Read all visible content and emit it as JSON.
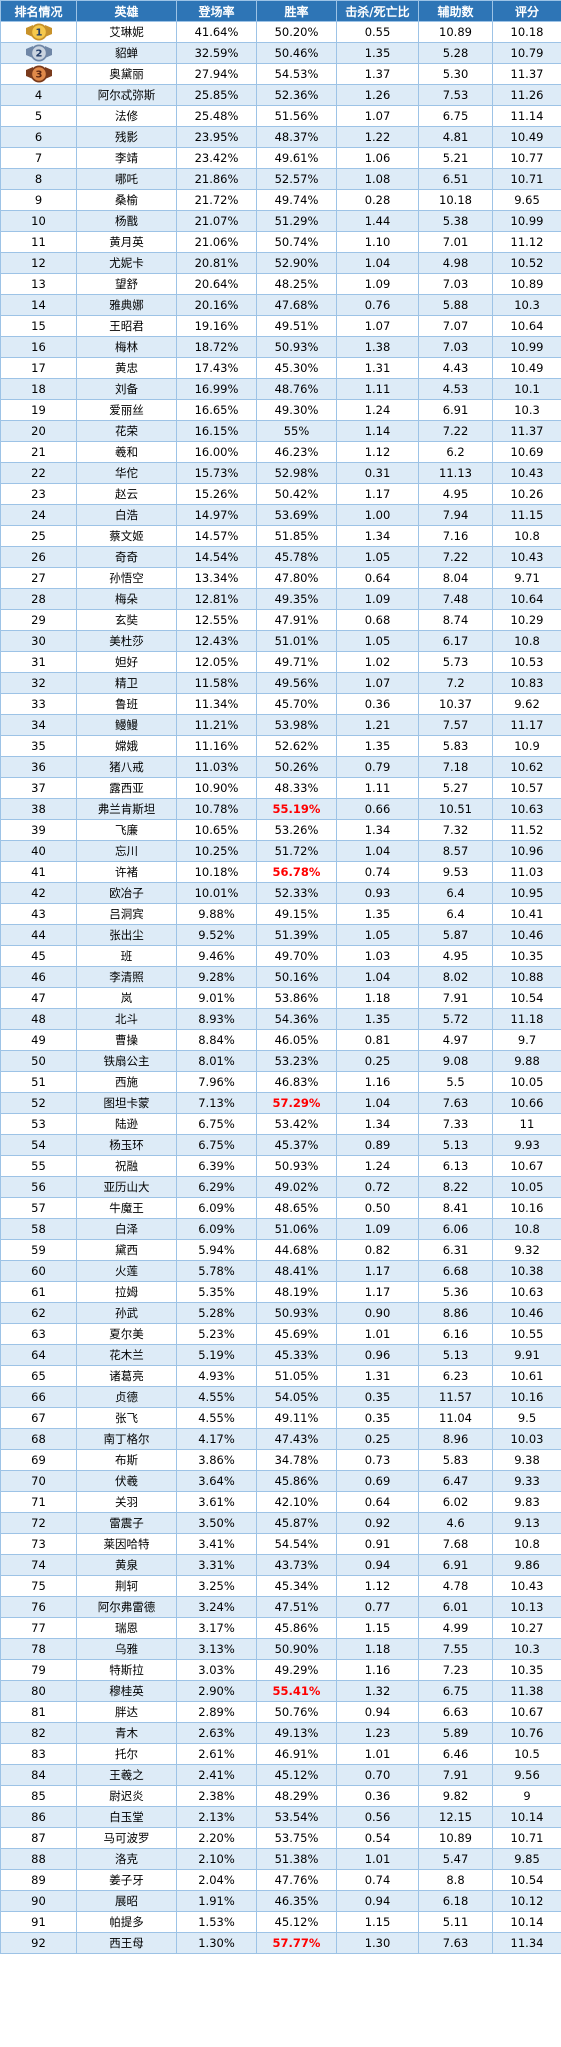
{
  "headers": [
    "排名情况",
    "英雄",
    "登场率",
    "胜率",
    "击杀/死亡比",
    "辅助数",
    "评分"
  ],
  "highlight_color": "#ff0000",
  "header_color": "#2e75b6",
  "stripe_color": "#ddebf7",
  "medal_icons": [
    "gold-medal-rank-1-icon",
    "silver-medal-rank-2-icon",
    "bronze-medal-rank-3-icon"
  ],
  "rows": [
    {
      "rank": "1",
      "hero": "艾琳妮",
      "appear": "41.64%",
      "win": "50.20%",
      "kd": "0.55",
      "assist": "10.89",
      "score": "10.18"
    },
    {
      "rank": "2",
      "hero": "貂蝉",
      "appear": "32.59%",
      "win": "50.46%",
      "kd": "1.35",
      "assist": "5.28",
      "score": "10.79"
    },
    {
      "rank": "3",
      "hero": "奥黛丽",
      "appear": "27.94%",
      "win": "54.53%",
      "kd": "1.37",
      "assist": "5.30",
      "score": "11.37"
    },
    {
      "rank": "4",
      "hero": "阿尔忒弥斯",
      "appear": "25.85%",
      "win": "52.36%",
      "kd": "1.26",
      "assist": "7.53",
      "score": "11.26"
    },
    {
      "rank": "5",
      "hero": "法修",
      "appear": "25.48%",
      "win": "51.56%",
      "kd": "1.07",
      "assist": "6.75",
      "score": "11.14"
    },
    {
      "rank": "6",
      "hero": "残影",
      "appear": "23.95%",
      "win": "48.37%",
      "kd": "1.22",
      "assist": "4.81",
      "score": "10.49"
    },
    {
      "rank": "7",
      "hero": "李靖",
      "appear": "23.42%",
      "win": "49.61%",
      "kd": "1.06",
      "assist": "5.21",
      "score": "10.77"
    },
    {
      "rank": "8",
      "hero": "哪吒",
      "appear": "21.86%",
      "win": "52.57%",
      "kd": "1.08",
      "assist": "6.51",
      "score": "10.71"
    },
    {
      "rank": "9",
      "hero": "桑榆",
      "appear": "21.72%",
      "win": "49.74%",
      "kd": "0.28",
      "assist": "10.18",
      "score": "9.65"
    },
    {
      "rank": "10",
      "hero": "杨戬",
      "appear": "21.07%",
      "win": "51.29%",
      "kd": "1.44",
      "assist": "5.38",
      "score": "10.99"
    },
    {
      "rank": "11",
      "hero": "黄月英",
      "appear": "21.06%",
      "win": "50.74%",
      "kd": "1.10",
      "assist": "7.01",
      "score": "11.12"
    },
    {
      "rank": "12",
      "hero": "尤妮卡",
      "appear": "20.81%",
      "win": "52.90%",
      "kd": "1.04",
      "assist": "4.98",
      "score": "10.52"
    },
    {
      "rank": "13",
      "hero": "望舒",
      "appear": "20.64%",
      "win": "48.25%",
      "kd": "1.09",
      "assist": "7.03",
      "score": "10.89"
    },
    {
      "rank": "14",
      "hero": "雅典娜",
      "appear": "20.16%",
      "win": "47.68%",
      "kd": "0.76",
      "assist": "5.88",
      "score": "10.3"
    },
    {
      "rank": "15",
      "hero": "王昭君",
      "appear": "19.16%",
      "win": "49.51%",
      "kd": "1.07",
      "assist": "7.07",
      "score": "10.64"
    },
    {
      "rank": "16",
      "hero": "梅林",
      "appear": "18.72%",
      "win": "50.93%",
      "kd": "1.38",
      "assist": "7.03",
      "score": "10.99"
    },
    {
      "rank": "17",
      "hero": "黄忠",
      "appear": "17.43%",
      "win": "45.30%",
      "kd": "1.31",
      "assist": "4.43",
      "score": "10.49"
    },
    {
      "rank": "18",
      "hero": "刘备",
      "appear": "16.99%",
      "win": "48.76%",
      "kd": "1.11",
      "assist": "4.53",
      "score": "10.1"
    },
    {
      "rank": "19",
      "hero": "爱丽丝",
      "appear": "16.65%",
      "win": "49.30%",
      "kd": "1.24",
      "assist": "6.91",
      "score": "10.3"
    },
    {
      "rank": "20",
      "hero": "花荣",
      "appear": "16.15%",
      "win": "55%",
      "kd": "1.14",
      "assist": "7.22",
      "score": "11.37"
    },
    {
      "rank": "21",
      "hero": "羲和",
      "appear": "16.00%",
      "win": "46.23%",
      "kd": "1.12",
      "assist": "6.2",
      "score": "10.69"
    },
    {
      "rank": "22",
      "hero": "华佗",
      "appear": "15.73%",
      "win": "52.98%",
      "kd": "0.31",
      "assist": "11.13",
      "score": "10.43"
    },
    {
      "rank": "23",
      "hero": "赵云",
      "appear": "15.26%",
      "win": "50.42%",
      "kd": "1.17",
      "assist": "4.95",
      "score": "10.26"
    },
    {
      "rank": "24",
      "hero": "白浩",
      "appear": "14.97%",
      "win": "53.69%",
      "kd": "1.00",
      "assist": "7.94",
      "score": "11.15"
    },
    {
      "rank": "25",
      "hero": "蔡文姬",
      "appear": "14.57%",
      "win": "51.85%",
      "kd": "1.34",
      "assist": "7.16",
      "score": "10.8"
    },
    {
      "rank": "26",
      "hero": "奇奇",
      "appear": "14.54%",
      "win": "45.78%",
      "kd": "1.05",
      "assist": "7.22",
      "score": "10.43"
    },
    {
      "rank": "27",
      "hero": "孙悟空",
      "appear": "13.34%",
      "win": "47.80%",
      "kd": "0.64",
      "assist": "8.04",
      "score": "9.71"
    },
    {
      "rank": "28",
      "hero": "梅朵",
      "appear": "12.81%",
      "win": "49.35%",
      "kd": "1.09",
      "assist": "7.48",
      "score": "10.64"
    },
    {
      "rank": "29",
      "hero": "玄奘",
      "appear": "12.55%",
      "win": "47.91%",
      "kd": "0.68",
      "assist": "8.74",
      "score": "10.29"
    },
    {
      "rank": "30",
      "hero": "美杜莎",
      "appear": "12.43%",
      "win": "51.01%",
      "kd": "1.05",
      "assist": "6.17",
      "score": "10.8"
    },
    {
      "rank": "31",
      "hero": "妲好",
      "appear": "12.05%",
      "win": "49.71%",
      "kd": "1.02",
      "assist": "5.73",
      "score": "10.53"
    },
    {
      "rank": "32",
      "hero": "精卫",
      "appear": "11.58%",
      "win": "49.56%",
      "kd": "1.07",
      "assist": "7.2",
      "score": "10.83"
    },
    {
      "rank": "33",
      "hero": "鲁班",
      "appear": "11.34%",
      "win": "45.70%",
      "kd": "0.36",
      "assist": "10.37",
      "score": "9.62"
    },
    {
      "rank": "34",
      "hero": "鳗鳗",
      "appear": "11.21%",
      "win": "53.98%",
      "kd": "1.21",
      "assist": "7.57",
      "score": "11.17"
    },
    {
      "rank": "35",
      "hero": "嫦娥",
      "appear": "11.16%",
      "win": "52.62%",
      "kd": "1.35",
      "assist": "5.83",
      "score": "10.9"
    },
    {
      "rank": "36",
      "hero": "猪八戒",
      "appear": "11.03%",
      "win": "50.26%",
      "kd": "0.79",
      "assist": "7.18",
      "score": "10.62"
    },
    {
      "rank": "37",
      "hero": "露西亚",
      "appear": "10.90%",
      "win": "48.33%",
      "kd": "1.11",
      "assist": "5.27",
      "score": "10.57"
    },
    {
      "rank": "38",
      "hero": "弗兰肯斯坦",
      "appear": "10.78%",
      "win": "55.19%",
      "win_hl": true,
      "kd": "0.66",
      "assist": "10.51",
      "score": "10.63"
    },
    {
      "rank": "39",
      "hero": "飞廉",
      "appear": "10.65%",
      "win": "53.26%",
      "kd": "1.34",
      "assist": "7.32",
      "score": "11.52"
    },
    {
      "rank": "40",
      "hero": "忘川",
      "appear": "10.25%",
      "win": "51.72%",
      "kd": "1.04",
      "assist": "8.57",
      "score": "10.96"
    },
    {
      "rank": "41",
      "hero": "许褚",
      "appear": "10.18%",
      "win": "56.78%",
      "win_hl": true,
      "kd": "0.74",
      "assist": "9.53",
      "score": "11.03"
    },
    {
      "rank": "42",
      "hero": "欧冶子",
      "appear": "10.01%",
      "win": "52.33%",
      "kd": "0.93",
      "assist": "6.4",
      "score": "10.95"
    },
    {
      "rank": "43",
      "hero": "吕洞宾",
      "appear": "9.88%",
      "win": "49.15%",
      "kd": "1.35",
      "assist": "6.4",
      "score": "10.41"
    },
    {
      "rank": "44",
      "hero": "张出尘",
      "appear": "9.52%",
      "win": "51.39%",
      "kd": "1.05",
      "assist": "5.87",
      "score": "10.46"
    },
    {
      "rank": "45",
      "hero": "班",
      "appear": "9.46%",
      "win": "49.70%",
      "kd": "1.03",
      "assist": "4.95",
      "score": "10.35"
    },
    {
      "rank": "46",
      "hero": "李清照",
      "appear": "9.28%",
      "win": "50.16%",
      "kd": "1.04",
      "assist": "8.02",
      "score": "10.88"
    },
    {
      "rank": "47",
      "hero": "岚",
      "appear": "9.01%",
      "win": "53.86%",
      "kd": "1.18",
      "assist": "7.91",
      "score": "10.54"
    },
    {
      "rank": "48",
      "hero": "北斗",
      "appear": "8.93%",
      "win": "54.36%",
      "kd": "1.35",
      "assist": "5.72",
      "score": "11.18"
    },
    {
      "rank": "49",
      "hero": "曹操",
      "appear": "8.84%",
      "win": "46.05%",
      "kd": "0.81",
      "assist": "4.97",
      "score": "9.7"
    },
    {
      "rank": "50",
      "hero": "铁扇公主",
      "appear": "8.01%",
      "win": "53.23%",
      "kd": "0.25",
      "assist": "9.08",
      "score": "9.88"
    },
    {
      "rank": "51",
      "hero": "西施",
      "appear": "7.96%",
      "win": "46.83%",
      "kd": "1.16",
      "assist": "5.5",
      "score": "10.05"
    },
    {
      "rank": "52",
      "hero": "图坦卡蒙",
      "appear": "7.13%",
      "win": "57.29%",
      "win_hl": true,
      "kd": "1.04",
      "assist": "7.63",
      "score": "10.66"
    },
    {
      "rank": "53",
      "hero": "陆逊",
      "appear": "6.75%",
      "win": "53.42%",
      "kd": "1.34",
      "assist": "7.33",
      "score": "11"
    },
    {
      "rank": "54",
      "hero": "杨玉环",
      "appear": "6.75%",
      "win": "45.37%",
      "kd": "0.89",
      "assist": "5.13",
      "score": "9.93"
    },
    {
      "rank": "55",
      "hero": "祝融",
      "appear": "6.39%",
      "win": "50.93%",
      "kd": "1.24",
      "assist": "6.13",
      "score": "10.67"
    },
    {
      "rank": "56",
      "hero": "亚历山大",
      "appear": "6.29%",
      "win": "49.02%",
      "kd": "0.72",
      "assist": "8.22",
      "score": "10.05"
    },
    {
      "rank": "57",
      "hero": "牛魔王",
      "appear": "6.09%",
      "win": "48.65%",
      "kd": "0.50",
      "assist": "8.41",
      "score": "10.16"
    },
    {
      "rank": "58",
      "hero": "白泽",
      "appear": "6.09%",
      "win": "51.06%",
      "kd": "1.09",
      "assist": "6.06",
      "score": "10.8"
    },
    {
      "rank": "59",
      "hero": "黛西",
      "appear": "5.94%",
      "win": "44.68%",
      "kd": "0.82",
      "assist": "6.31",
      "score": "9.32"
    },
    {
      "rank": "60",
      "hero": "火莲",
      "appear": "5.78%",
      "win": "48.41%",
      "kd": "1.17",
      "assist": "6.68",
      "score": "10.38"
    },
    {
      "rank": "61",
      "hero": "拉姆",
      "appear": "5.35%",
      "win": "48.19%",
      "kd": "1.17",
      "assist": "5.36",
      "score": "10.63"
    },
    {
      "rank": "62",
      "hero": "孙武",
      "appear": "5.28%",
      "win": "50.93%",
      "kd": "0.90",
      "assist": "8.86",
      "score": "10.46"
    },
    {
      "rank": "63",
      "hero": "夏尔美",
      "appear": "5.23%",
      "win": "45.69%",
      "kd": "1.01",
      "assist": "6.16",
      "score": "10.55"
    },
    {
      "rank": "64",
      "hero": "花木兰",
      "appear": "5.19%",
      "win": "45.33%",
      "kd": "0.96",
      "assist": "5.13",
      "score": "9.91"
    },
    {
      "rank": "65",
      "hero": "诸葛亮",
      "appear": "4.93%",
      "win": "51.05%",
      "kd": "1.31",
      "assist": "6.23",
      "score": "10.61"
    },
    {
      "rank": "66",
      "hero": "贞德",
      "appear": "4.55%",
      "win": "54.05%",
      "kd": "0.35",
      "assist": "11.57",
      "score": "10.16"
    },
    {
      "rank": "67",
      "hero": "张飞",
      "appear": "4.55%",
      "win": "49.11%",
      "kd": "0.35",
      "assist": "11.04",
      "score": "9.5"
    },
    {
      "rank": "68",
      "hero": "南丁格尔",
      "appear": "4.17%",
      "win": "47.43%",
      "kd": "0.25",
      "assist": "8.96",
      "score": "10.03"
    },
    {
      "rank": "69",
      "hero": "布斯",
      "appear": "3.86%",
      "win": "34.78%",
      "kd": "0.73",
      "assist": "5.83",
      "score": "9.38"
    },
    {
      "rank": "70",
      "hero": "伏羲",
      "appear": "3.64%",
      "win": "45.86%",
      "kd": "0.69",
      "assist": "6.47",
      "score": "9.33"
    },
    {
      "rank": "71",
      "hero": "关羽",
      "appear": "3.61%",
      "win": "42.10%",
      "kd": "0.64",
      "assist": "6.02",
      "score": "9.83"
    },
    {
      "rank": "72",
      "hero": "雷震子",
      "appear": "3.50%",
      "win": "45.87%",
      "kd": "0.92",
      "assist": "4.6",
      "score": "9.13"
    },
    {
      "rank": "73",
      "hero": "莱因哈特",
      "appear": "3.41%",
      "win": "54.54%",
      "kd": "0.91",
      "assist": "7.68",
      "score": "10.8"
    },
    {
      "rank": "74",
      "hero": "黄泉",
      "appear": "3.31%",
      "win": "43.73%",
      "kd": "0.94",
      "assist": "6.91",
      "score": "9.86"
    },
    {
      "rank": "75",
      "hero": "荆轲",
      "appear": "3.25%",
      "win": "45.34%",
      "kd": "1.12",
      "assist": "4.78",
      "score": "10.43"
    },
    {
      "rank": "76",
      "hero": "阿尔弗雷德",
      "appear": "3.24%",
      "win": "47.51%",
      "kd": "0.77",
      "assist": "6.01",
      "score": "10.13"
    },
    {
      "rank": "77",
      "hero": "瑞恩",
      "appear": "3.17%",
      "win": "45.86%",
      "kd": "1.15",
      "assist": "4.99",
      "score": "10.27"
    },
    {
      "rank": "78",
      "hero": "乌雅",
      "appear": "3.13%",
      "win": "50.90%",
      "kd": "1.18",
      "assist": "7.55",
      "score": "10.3"
    },
    {
      "rank": "79",
      "hero": "特斯拉",
      "appear": "3.03%",
      "win": "49.29%",
      "kd": "1.16",
      "assist": "7.23",
      "score": "10.35"
    },
    {
      "rank": "80",
      "hero": "穆桂英",
      "appear": "2.90%",
      "win": "55.41%",
      "win_hl": true,
      "kd": "1.32",
      "assist": "6.75",
      "score": "11.38"
    },
    {
      "rank": "81",
      "hero": "胖达",
      "appear": "2.89%",
      "win": "50.76%",
      "kd": "0.94",
      "assist": "6.63",
      "score": "10.67"
    },
    {
      "rank": "82",
      "hero": "青木",
      "appear": "2.63%",
      "win": "49.13%",
      "kd": "1.23",
      "assist": "5.89",
      "score": "10.76"
    },
    {
      "rank": "83",
      "hero": "托尔",
      "appear": "2.61%",
      "win": "46.91%",
      "kd": "1.01",
      "assist": "6.46",
      "score": "10.5"
    },
    {
      "rank": "84",
      "hero": "王羲之",
      "appear": "2.41%",
      "win": "45.12%",
      "kd": "0.70",
      "assist": "7.91",
      "score": "9.56"
    },
    {
      "rank": "85",
      "hero": "尉迟炎",
      "appear": "2.38%",
      "win": "48.29%",
      "kd": "0.36",
      "assist": "9.82",
      "score": "9"
    },
    {
      "rank": "86",
      "hero": "白玉堂",
      "appear": "2.13%",
      "win": "53.54%",
      "kd": "0.56",
      "assist": "12.15",
      "score": "10.14"
    },
    {
      "rank": "87",
      "hero": "马可波罗",
      "appear": "2.20%",
      "win": "53.75%",
      "kd": "0.54",
      "assist": "10.89",
      "score": "10.71"
    },
    {
      "rank": "88",
      "hero": "洛克",
      "appear": "2.10%",
      "win": "51.38%",
      "kd": "1.01",
      "assist": "5.47",
      "score": "9.85"
    },
    {
      "rank": "89",
      "hero": "姜子牙",
      "appear": "2.04%",
      "win": "47.76%",
      "kd": "0.74",
      "assist": "8.8",
      "score": "10.54"
    },
    {
      "rank": "90",
      "hero": "展昭",
      "appear": "1.91%",
      "win": "46.35%",
      "kd": "0.94",
      "assist": "6.18",
      "score": "10.12"
    },
    {
      "rank": "91",
      "hero": "帕提多",
      "appear": "1.53%",
      "win": "45.12%",
      "kd": "1.15",
      "assist": "5.11",
      "score": "10.14"
    },
    {
      "rank": "92",
      "hero": "西王母",
      "appear": "1.30%",
      "win": "57.77%",
      "win_hl": true,
      "kd": "1.30",
      "assist": "7.63",
      "score": "11.34"
    }
  ]
}
